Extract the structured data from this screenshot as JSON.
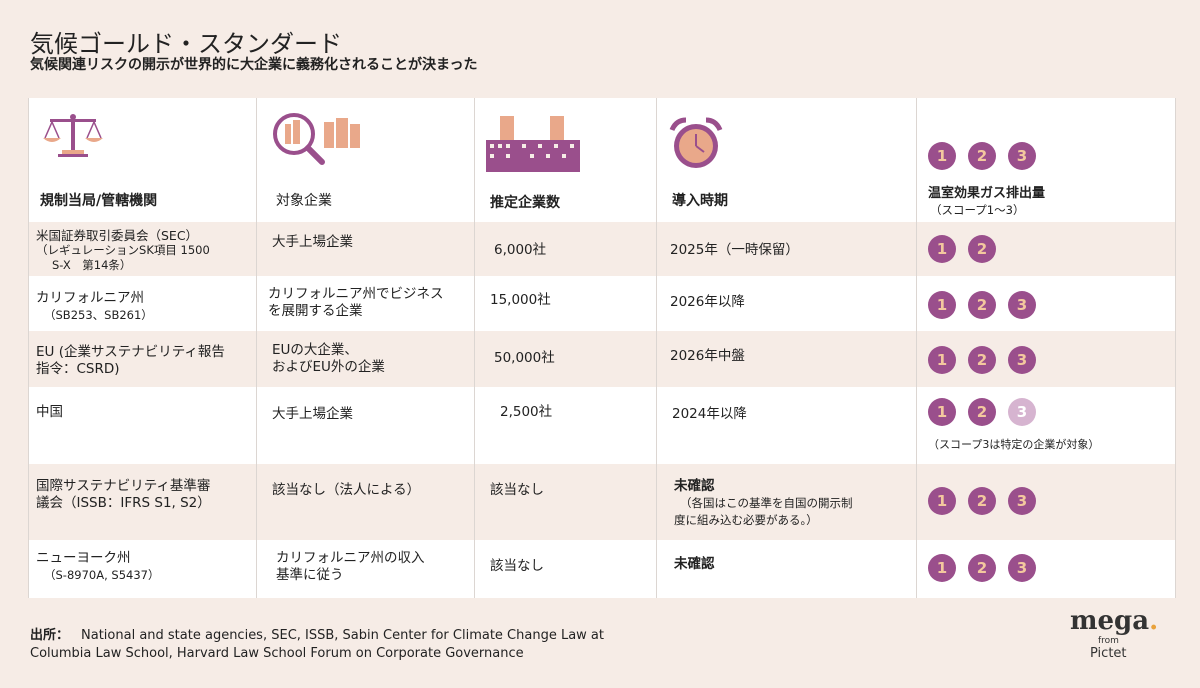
{
  "title": "気候ゴールド・スタンダード",
  "subtitle": "気候関連リスクの開示が世界的に大企業に義務化されることが決まった",
  "headers": {
    "authority": "規制当局/管轄機関",
    "target": "対象企業",
    "count": "推定企業数",
    "timing": "導入時期",
    "scope_line1": "温室効果ガス排出量",
    "scope_line2": "（スコープ1〜3）"
  },
  "icons": {
    "authority": "scales-icon",
    "target": "magnifier-buildings-icon",
    "count": "buildings-icon",
    "timing": "alarm-clock-icon"
  },
  "header_scopes": [
    "1",
    "2",
    "3"
  ],
  "rows": [
    {
      "authority": "米国証券取引委員会（SEC）",
      "authority_sub1": "（レギュレーションSK項目 1500",
      "authority_sub2": "S-X　第14条）",
      "target1": "大手上場企業",
      "target2": "",
      "count": "6,000社",
      "timing": "2025年（一時保留）",
      "timing_sub1": "",
      "timing_sub2": "",
      "scopes": [
        "1",
        "2"
      ],
      "faint_scopes": [],
      "note": ""
    },
    {
      "authority": "カリフォルニア州",
      "authority_sub1": "（SB253、SB261）",
      "authority_sub2": "",
      "target1": "カリフォルニア州でビジネス",
      "target2": "を展開する企業",
      "count": "15,000社",
      "timing": "2026年以降",
      "timing_sub1": "",
      "timing_sub2": "",
      "scopes": [
        "1",
        "2",
        "3"
      ],
      "faint_scopes": [],
      "note": ""
    },
    {
      "authority": "EU (企業サステナビリティ報告",
      "authority_sub1": "指令：CSRD)",
      "authority_sub2": "",
      "target1": "EUの大企業、",
      "target2": "およびEU外の企業",
      "count": "50,000社",
      "timing": "2026年中盤",
      "timing_sub1": "",
      "timing_sub2": "",
      "scopes": [
        "1",
        "2",
        "3"
      ],
      "faint_scopes": [],
      "note": ""
    },
    {
      "authority": "中国",
      "authority_sub1": "",
      "authority_sub2": "",
      "target1": "大手上場企業",
      "target2": "",
      "count": "2,500社",
      "timing": "2024年以降",
      "timing_sub1": "",
      "timing_sub2": "",
      "scopes": [
        "1",
        "2"
      ],
      "faint_scopes": [
        "3"
      ],
      "note": "（スコープ3は特定の企業が対象）"
    },
    {
      "authority": "国際サステナビリティ基準審",
      "authority_sub1": "議会（ISSB：IFRS S1, S2）",
      "authority_sub2": "",
      "target1": "該当なし（法人による）",
      "target2": "",
      "count": "該当なし",
      "timing": "未確認",
      "timing_sub1": "（各国はこの基準を自国の開示制",
      "timing_sub2": "度に組み込む必要がある。）",
      "scopes": [
        "1",
        "2",
        "3"
      ],
      "faint_scopes": [],
      "note": ""
    },
    {
      "authority": "ニューヨーク州",
      "authority_sub1": "（S-8970A, S5437）",
      "authority_sub2": "",
      "target1": "カリフォルニア州の収入",
      "target2": "基準に従う",
      "count": "該当なし",
      "timing": "未確認",
      "timing_sub1": "",
      "timing_sub2": "",
      "scopes": [
        "1",
        "2",
        "3"
      ],
      "faint_scopes": [],
      "note": ""
    }
  ],
  "source_label": "出所：",
  "source_line1": "National and state agencies, SEC, ISSB, Sabin Center for Climate Change Law at",
  "source_line2": "Columbia Law School, Harvard Law School Forum on Corporate Governance",
  "logo": {
    "brand": "mega",
    "dot": ".",
    "from": "from",
    "company": "Pictet",
    "accent": "#e9a23b"
  },
  "colors": {
    "background": "#f6ece6",
    "circle": "#9a4f8c",
    "circle_text": "#f3c89e",
    "circle_faint": "#d6b4d0",
    "icon_orange": "#e9a88a"
  }
}
